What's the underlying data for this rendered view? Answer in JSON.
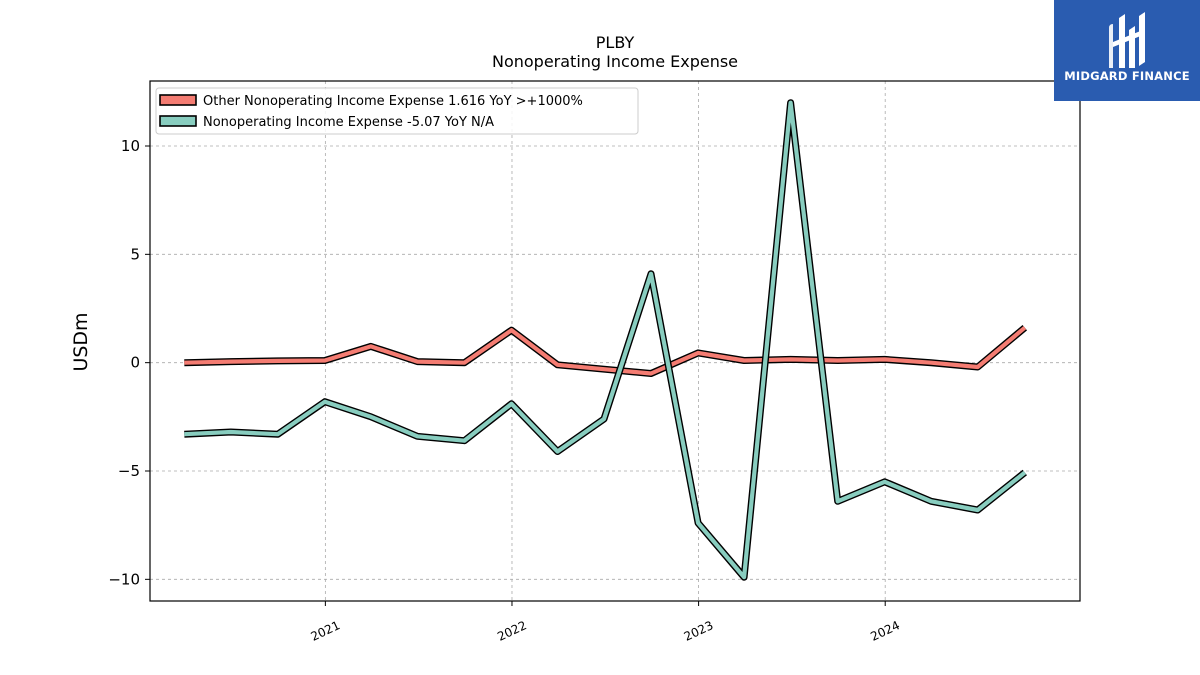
{
  "header": {
    "title": "PLBY",
    "subtitle": "Nonoperating Income Expense"
  },
  "brand": {
    "name": "MIDGARD FINANCE",
    "color": "#2a5cb0"
  },
  "chart_data": {
    "type": "line",
    "title": "PLBY",
    "subtitle": "Nonoperating Income Expense",
    "xlabel": "",
    "ylabel": "USDm",
    "ylim": [
      -11,
      13
    ],
    "xlim": [
      "2020-01-24",
      "2025-01-16"
    ],
    "yticks": [
      -10,
      -5,
      0,
      5,
      10
    ],
    "ytick_labels": [
      "−10",
      "−5",
      "0",
      "5",
      "10"
    ],
    "xticks": [
      "2021-01-01",
      "2022-01-01",
      "2023-01-01",
      "2024-01-01"
    ],
    "xtick_labels": [
      "2021",
      "2022",
      "2023",
      "2024"
    ],
    "grid": true,
    "legend_position": "top-left",
    "x": [
      "2020-03-31",
      "2020-06-30",
      "2020-09-30",
      "2020-12-31",
      "2021-03-31",
      "2021-06-30",
      "2021-09-30",
      "2021-12-31",
      "2022-03-31",
      "2022-06-30",
      "2022-09-30",
      "2022-12-31",
      "2023-03-31",
      "2023-06-30",
      "2023-09-30",
      "2023-12-31",
      "2024-03-31",
      "2024-06-30",
      "2024-09-30"
    ],
    "series": [
      {
        "name": "Other Nonoperating Income Expense",
        "legend_label": "Other Nonoperating Income Expense  1.616 YoY >+1000%",
        "color": "#f47c72",
        "values": [
          0.0,
          0.05,
          0.08,
          0.1,
          0.75,
          0.05,
          0.0,
          1.5,
          -0.1,
          -0.3,
          -0.5,
          0.45,
          0.1,
          0.15,
          0.1,
          0.15,
          0.0,
          -0.2,
          1.616
        ]
      },
      {
        "name": "Nonoperating Income Expense",
        "legend_label": "Nonoperating Income Expense  -5.07 YoY N/A",
        "color": "#88cdbf",
        "values": [
          -3.3,
          -3.2,
          -3.3,
          -1.8,
          -2.5,
          -3.4,
          -3.6,
          -1.9,
          -4.1,
          -2.6,
          4.1,
          -7.4,
          -9.9,
          12.0,
          -6.4,
          -5.5,
          -6.4,
          -6.8,
          -5.07
        ]
      }
    ]
  }
}
